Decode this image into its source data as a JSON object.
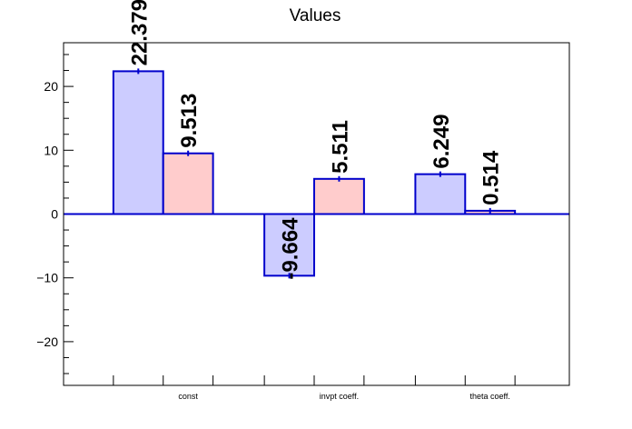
{
  "chart_data": {
    "type": "bar",
    "title": "Values",
    "categories": [
      "const",
      "invpt coeff.",
      "theta coeff."
    ],
    "series": [
      {
        "values": [
          22.379,
          -9.664,
          6.249
        ],
        "labels": [
          "22.379",
          "-9.664",
          "6.249"
        ],
        "fill": "#ccccff",
        "stroke": "#0000cc"
      },
      {
        "values": [
          9.513,
          5.511,
          0.514
        ],
        "labels": [
          "9.513",
          "5.511",
          "0.514"
        ],
        "fill": "#ffcccc",
        "stroke": "#0000cc"
      }
    ],
    "ylim": [
      -26.85,
      26.85
    ],
    "yticks": [
      -20,
      -10,
      0,
      10,
      20
    ],
    "ytick_labels": [
      "−20",
      "−10",
      "0",
      "10",
      "20"
    ],
    "xlabel": "",
    "ylabel": "",
    "grid": false,
    "legend": "none"
  }
}
